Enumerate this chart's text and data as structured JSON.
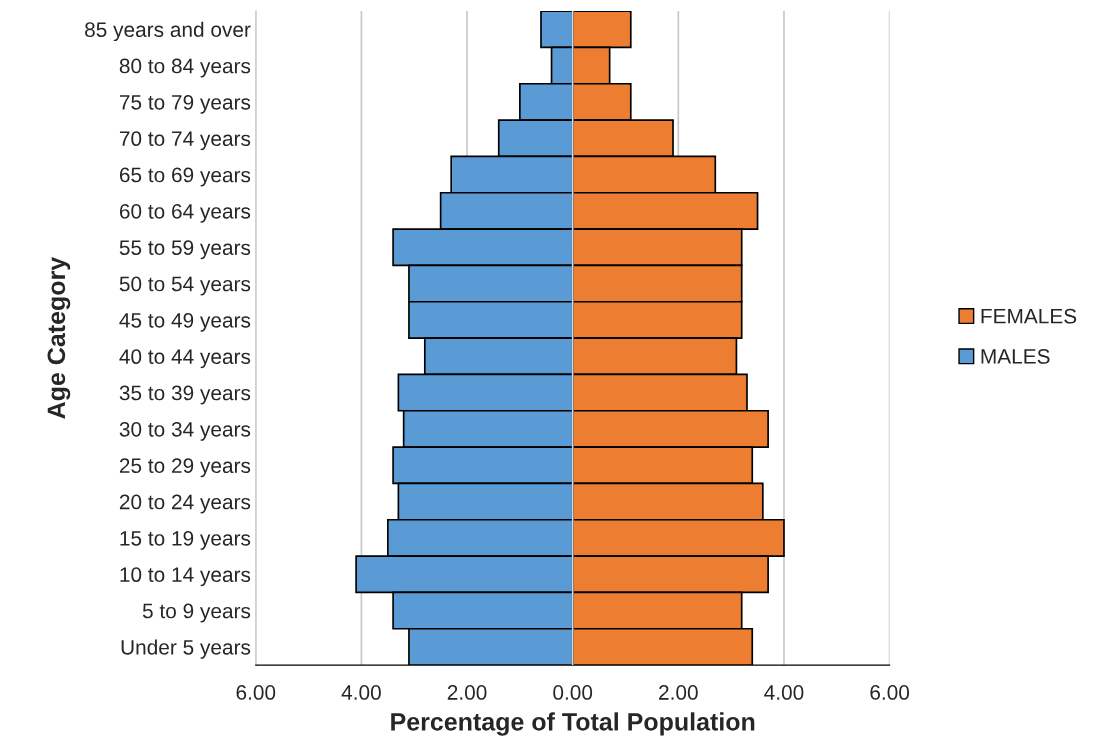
{
  "chart_data": {
    "type": "bar",
    "orientation": "horizontal",
    "xlabel": "Percentage of Total Population",
    "ylabel": "Age Category",
    "categories": [
      "85 years and over",
      "80 to 84 years",
      "75 to 79 years",
      "70 to 74 years",
      "65 to 69 years",
      "60 to 64 years",
      "55 to 59 years",
      "50 to 54 years",
      "45 to 49 years",
      "40 to 44 years",
      "35 to 39 years",
      "30 to 34 years",
      "25 to 29 years",
      "20 to 24 years",
      "15 to 19 years",
      "10 to 14 years",
      "5 to 9 years",
      "Under 5 years"
    ],
    "series": [
      {
        "name": "FEMALES",
        "color": "#ed7d31",
        "values": [
          1.1,
          0.7,
          1.1,
          1.9,
          2.7,
          3.5,
          3.2,
          3.2,
          3.2,
          3.1,
          3.3,
          3.7,
          3.4,
          3.6,
          4.0,
          3.7,
          3.2,
          3.4
        ]
      },
      {
        "name": "MALES",
        "color": "#5b9bd5",
        "values": [
          -0.6,
          -0.4,
          -1.0,
          -1.4,
          -2.3,
          -2.5,
          -3.4,
          -3.1,
          -3.1,
          -2.8,
          -3.3,
          -3.2,
          -3.4,
          -3.3,
          -3.5,
          -4.1,
          -3.4,
          -3.1
        ]
      }
    ],
    "xlim": [
      -6,
      6
    ],
    "xticks": [
      {
        "value": -6,
        "label": "6.00"
      },
      {
        "value": -4,
        "label": "4.00"
      },
      {
        "value": -2,
        "label": "2.00"
      },
      {
        "value": 0,
        "label": "0.00"
      },
      {
        "value": 2,
        "label": "2.00"
      },
      {
        "value": 4,
        "label": "4.00"
      },
      {
        "value": 6,
        "label": "6.00"
      }
    ],
    "grid": "x",
    "legend": "right",
    "stacked": true
  }
}
